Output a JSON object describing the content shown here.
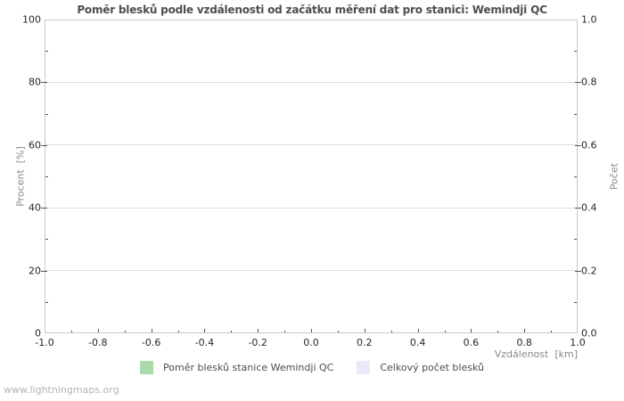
{
  "chart_data": {
    "type": "line",
    "title": "Poměr blesků podle vzdálenosti od začátku měření dat pro stanici: Wemindji QC",
    "xlabel": "Vzdálenost  [km]",
    "ylabel_left": "Procent  [%]",
    "ylabel_right": "Počet",
    "x_axis": {
      "min": -1.0,
      "max": 1.0,
      "ticks": [
        "-1.0",
        "-0.8",
        "-0.6",
        "-0.4",
        "-0.2",
        "0.0",
        "0.2",
        "0.4",
        "0.6",
        "0.8",
        "1.0"
      ],
      "minor_tick_step": 0.1
    },
    "y_axis_left": {
      "min": 0,
      "max": 100,
      "ticks": [
        "0",
        "20",
        "40",
        "60",
        "80",
        "100"
      ],
      "minor_tick_step": 10
    },
    "y_axis_right": {
      "min": 0.0,
      "max": 1.0,
      "ticks": [
        "0.0",
        "0.2",
        "0.4",
        "0.6",
        "0.8",
        "1.0"
      ],
      "minor_tick_step": 0.1
    },
    "grid": "horizontal-major-only",
    "legend_position": "bottom-center",
    "series": [
      {
        "name": "Poměr blesků stanice Wemindji QC",
        "color": "#aad9aa",
        "values": []
      },
      {
        "name": "Celkový počet blesků",
        "color": "#e9ebfa",
        "values": []
      }
    ]
  },
  "footer": {
    "watermark": "www.lightningmaps.org"
  },
  "colors": {
    "plot_border": "#c8c8c8",
    "gridline": "#dcdcdc",
    "tick_mark": "#555555",
    "tick_label": "#262626",
    "title": "#4d4d4d",
    "axis_name": "#8a8a8a",
    "watermark": "#b4b4b4"
  }
}
